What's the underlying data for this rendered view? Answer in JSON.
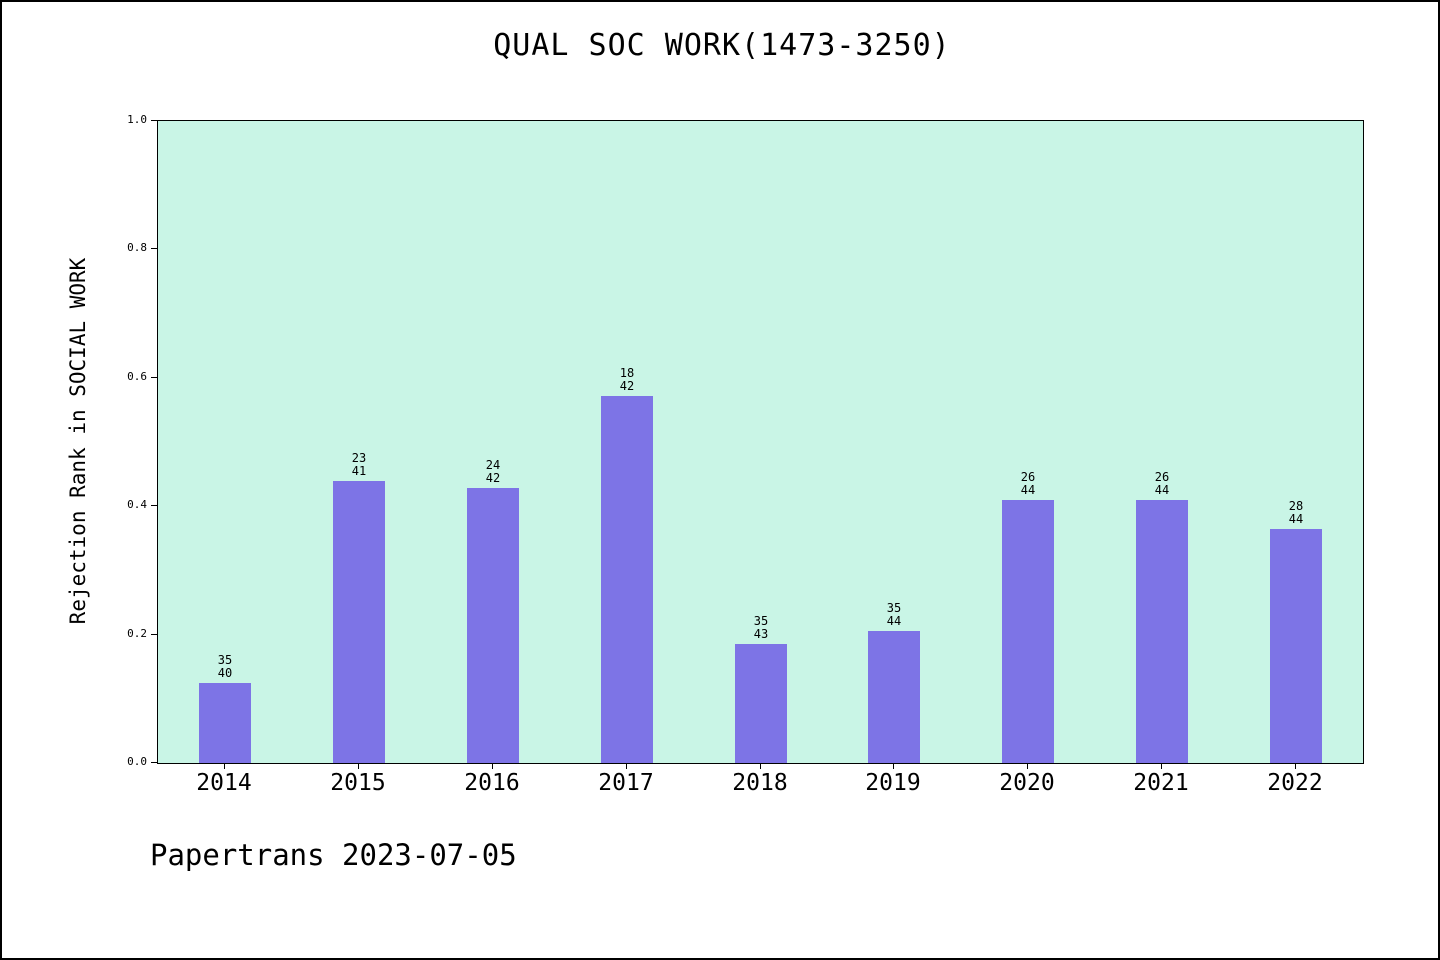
{
  "chart_data": {
    "type": "bar",
    "title": "QUAL SOC WORK(1473-3250)",
    "ylabel": "Rejection Rank in SOCIAL WORK",
    "xlabel": "",
    "categories": [
      "2014",
      "2015",
      "2016",
      "2017",
      "2018",
      "2019",
      "2020",
      "2021",
      "2022"
    ],
    "values": [
      0.125,
      0.439,
      0.429,
      0.571,
      0.186,
      0.205,
      0.409,
      0.409,
      0.364
    ],
    "bar_labels": [
      [
        "35",
        "40"
      ],
      [
        "23",
        "41"
      ],
      [
        "24",
        "42"
      ],
      [
        "18",
        "42"
      ],
      [
        "35",
        "43"
      ],
      [
        "35",
        "44"
      ],
      [
        "26",
        "44"
      ],
      [
        "26",
        "44"
      ],
      [
        "28",
        "44"
      ]
    ],
    "ylim": [
      0.0,
      1.0
    ],
    "yticks": [
      "0.0",
      "0.2",
      "0.4",
      "0.6",
      "0.8",
      "1.0"
    ],
    "grid": false,
    "legend_position": "none",
    "bar_color": "#7d74e6",
    "plot_background": "#c9f5e6"
  },
  "footer": {
    "text": "Papertrans 2023-07-05"
  }
}
